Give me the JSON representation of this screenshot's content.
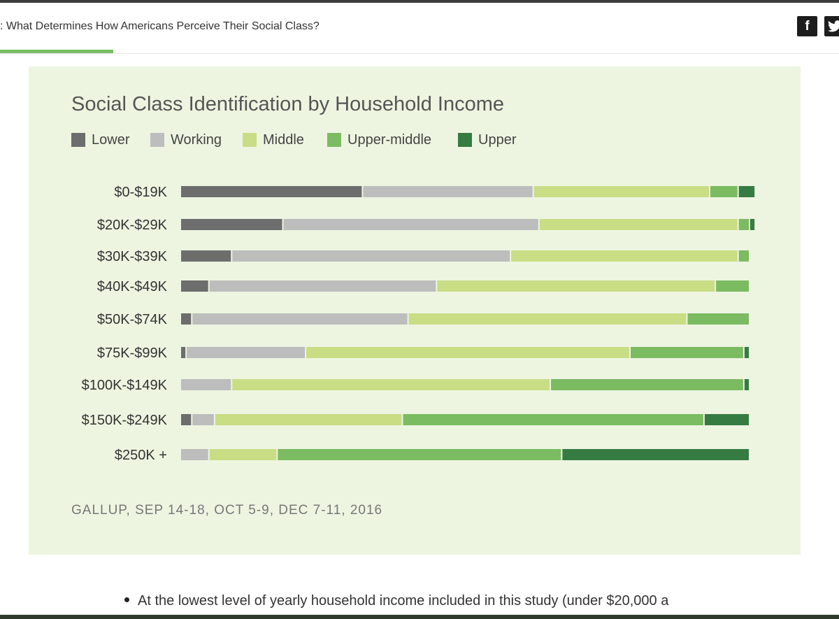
{
  "header": {
    "title": ": What Determines How Americans Perceive Their Social Class?",
    "share_facebook": "f",
    "share_twitter_icon": "twitter-bird-icon"
  },
  "chart_data": {
    "type": "bar",
    "orientation": "horizontal",
    "stacked": true,
    "normalized": true,
    "title": "Social Class Identification by Household Income",
    "xlabel": "",
    "ylabel": "",
    "xlim": [
      0,
      100
    ],
    "legend_position": "top-left",
    "categories": [
      "$0-$19K",
      "$20K-$29K",
      "$30K-$39K",
      "$40K-$49K",
      "$50K-$74K",
      "$75K-$99K",
      "$100K-$149K",
      "$150K-$249K",
      "$250K +"
    ],
    "series": [
      {
        "name": "Lower",
        "color": "#6d6d6d",
        "values": [
          32,
          18,
          9,
          5,
          2,
          1,
          0,
          2,
          0
        ]
      },
      {
        "name": "Working",
        "color": "#bdbdbd",
        "values": [
          30,
          45,
          49,
          40,
          38,
          21,
          9,
          4,
          5
        ]
      },
      {
        "name": "Middle",
        "color": "#c9dd85",
        "values": [
          31,
          35,
          40,
          49,
          49,
          57,
          56,
          33,
          12
        ]
      },
      {
        "name": "Upper-middle",
        "color": "#7bbb62",
        "values": [
          5,
          2,
          2,
          6,
          11,
          20,
          34,
          53,
          50
        ]
      },
      {
        "name": "Upper",
        "color": "#367b41",
        "values": [
          3,
          1,
          0,
          0,
          0,
          1,
          1,
          8,
          33
        ]
      }
    ],
    "source": "GALLUP, SEP 14-18, OCT 5-9, DEC 7-11, 2016"
  },
  "article": {
    "bullet_text": "At the lowest level of yearly household income included in this study (under $20,000 a"
  }
}
